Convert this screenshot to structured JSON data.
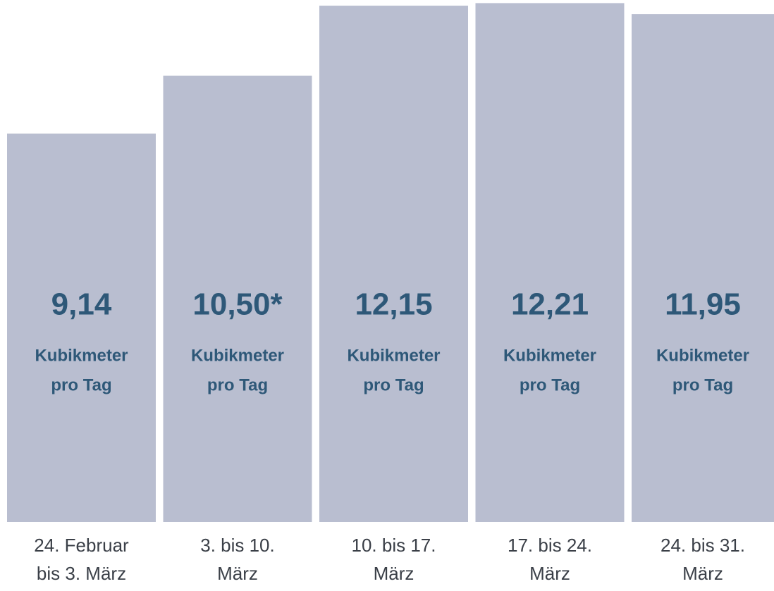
{
  "chart_data": {
    "type": "bar",
    "categories": [
      [
        "24. Februar",
        "bis 3. März"
      ],
      [
        "3. bis 10.",
        "März"
      ],
      [
        "10. bis 17.",
        "März"
      ],
      [
        "17. bis 24.",
        "März"
      ],
      [
        "24. bis 31.",
        "März"
      ]
    ],
    "values": [
      9.14,
      10.5,
      12.15,
      12.21,
      11.95
    ],
    "value_labels": [
      "9,14",
      "10,50*",
      "12,15",
      "12,21",
      "11,95"
    ],
    "unit": [
      "Kubikmeter",
      "pro Tag"
    ],
    "color": "#b9bed0",
    "ylim": [
      0,
      12.25
    ]
  }
}
